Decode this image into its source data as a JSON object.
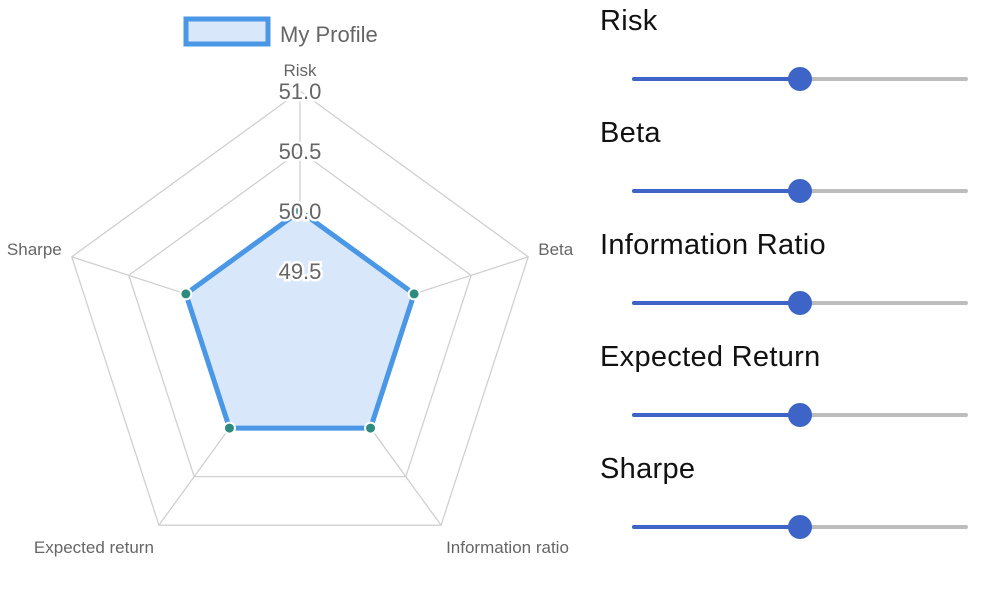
{
  "chart_data": {
    "type": "radar",
    "legend": {
      "position": "top",
      "items": [
        {
          "label": "My Profile"
        }
      ]
    },
    "axes": [
      "Risk",
      "Beta",
      "Information ratio",
      "Expected return",
      "Sharpe"
    ],
    "r_range": [
      49,
      51
    ],
    "ticks": [
      "49.5",
      "50.0",
      "50.5",
      "51.0"
    ],
    "tick_values": [
      49.5,
      50,
      50.5,
      51
    ],
    "series": [
      {
        "name": "My Profile",
        "values": [
          50,
          50,
          50,
          50,
          50
        ],
        "line_color": "#4a97e6",
        "fill_color": "#d9e7fb",
        "point_color": "#2e8b7f"
      }
    ],
    "grid": true,
    "grid_color": "#d0d0d0"
  },
  "sliders": {
    "accent_color": "#3f64c7",
    "track_color": "#bdbdbd",
    "items": [
      {
        "key": "risk",
        "label": "Risk",
        "value": 0.5
      },
      {
        "key": "beta",
        "label": "Beta",
        "value": 0.5
      },
      {
        "key": "information-ratio",
        "label": "Information Ratio",
        "value": 0.5
      },
      {
        "key": "expected-return",
        "label": "Expected Return",
        "value": 0.5
      },
      {
        "key": "sharpe",
        "label": "Sharpe",
        "value": 0.5
      }
    ]
  }
}
